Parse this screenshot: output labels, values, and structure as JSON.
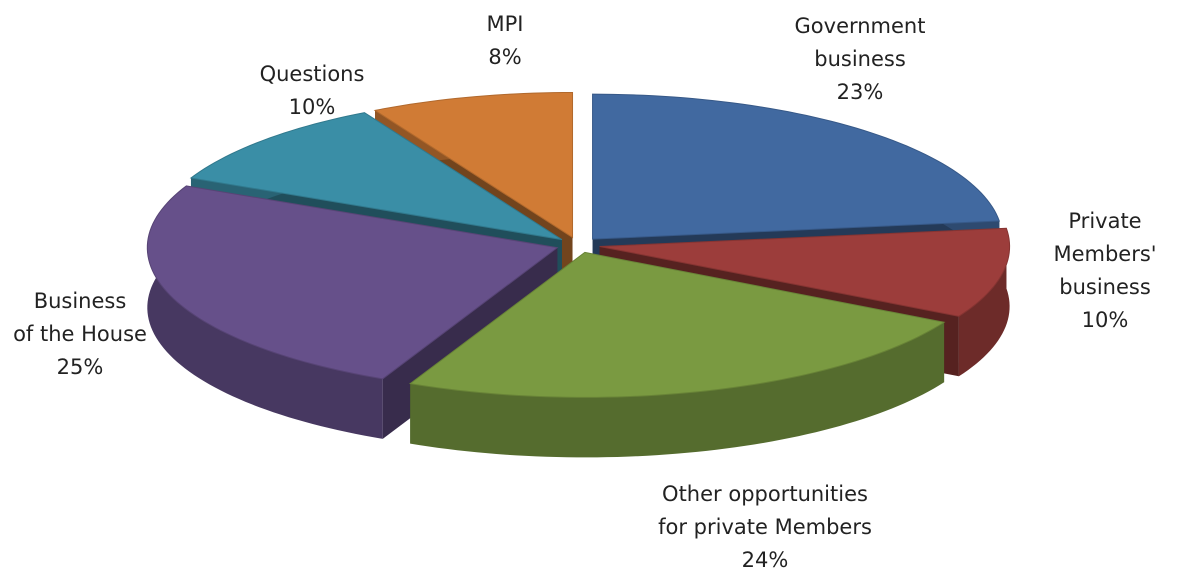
{
  "chart_data": {
    "type": "pie",
    "categories": [
      "Government\nbusiness",
      "Private Members'\nbusiness",
      "Other opportunities\nfor private Members",
      "Business\nof the House",
      "Questions",
      "MPI"
    ],
    "values": [
      23,
      10,
      24,
      25,
      10,
      8
    ],
    "value_labels": [
      "23%",
      "10%",
      "24%",
      "25%",
      "10%",
      "8%"
    ],
    "colors": [
      "#4169a0",
      "#9c3d3b",
      "#7a9a41",
      "#66508a",
      "#3a8ea6",
      "#d07b35"
    ]
  }
}
